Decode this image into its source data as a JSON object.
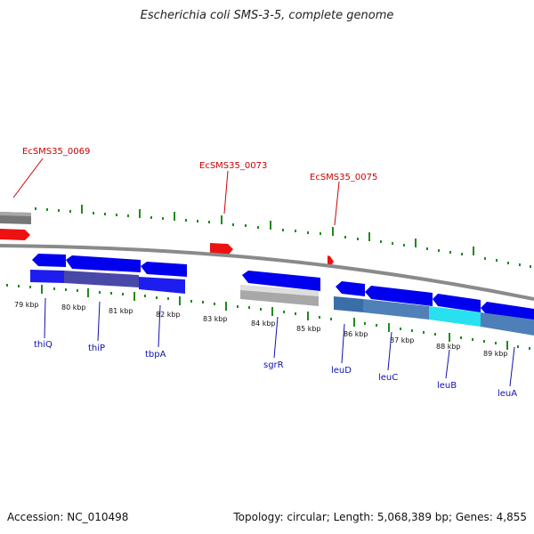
{
  "title": "Escherichia coli SMS-3-5, complete genome",
  "footer": {
    "accession": "Accession: NC_010498",
    "summary": "Topology: circular; Length: 5,068,389 bp; Genes: 4,855"
  },
  "colors": {
    "tick": "#1f8a1f",
    "backbone": "#888888",
    "forward_gene": "#0000ee",
    "rna_feature": "#ee1111",
    "red_label": "#cc0000",
    "blue_label": "#1010b0",
    "gray_feature": "#9a9a9a",
    "highlight_feature": "#28e0f0",
    "steel_feature": "#4f7fb8"
  },
  "kbp_labels": [
    "79 kbp",
    "80 kbp",
    "81 kbp",
    "82 kbp",
    "83 kbp",
    "84 kbp",
    "85 kbp",
    "86 kbp",
    "87 kbp",
    "88 kbp",
    "89 kbp"
  ],
  "top_features": [
    "EcSMS35_0069",
    "EcSMS35_0073",
    "EcSMS35_0075"
  ],
  "bottom_features": [
    "thiQ",
    "thiP",
    "tbpA",
    "sgrR",
    "leuD",
    "leuC",
    "leuB",
    "leuA"
  ]
}
